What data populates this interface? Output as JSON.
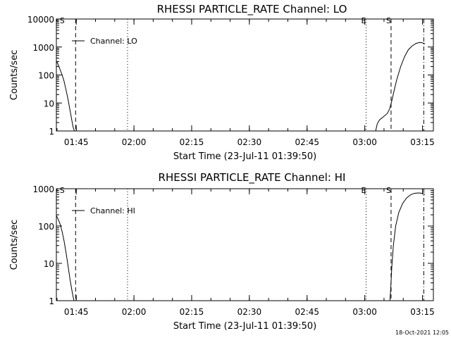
{
  "chart_data": [
    {
      "type": "line",
      "title": "RHESSI PARTICLE_RATE Channel: LO",
      "xlabel": "Start Time (23-Jul-11 01:39:50)",
      "ylabel": "Counts/sec",
      "yscale": "log",
      "ylim": [
        1,
        10000
      ],
      "ytick_labels": [
        "1",
        "10",
        "100",
        "1000",
        "10000"
      ],
      "xlim_minutes_from_start": [
        0,
        98
      ],
      "xtick_labels": [
        "01:45",
        "02:00",
        "02:15",
        "02:30",
        "02:45",
        "03:00",
        "03:15"
      ],
      "legend": "Channel: LO",
      "event_markers": [
        {
          "label": "S",
          "minute": 0.5,
          "style": "none"
        },
        {
          "label": "",
          "minute": 5.0,
          "style": "dashed"
        },
        {
          "label": "",
          "minute": 18.5,
          "style": "dotted"
        },
        {
          "label": "E",
          "minute": 80.5,
          "style": "dotted"
        },
        {
          "label": "S",
          "minute": 87.0,
          "style": "dashed"
        },
        {
          "label": "",
          "minute": 95.5,
          "style": "dashdot"
        }
      ],
      "series": [
        {
          "name": "Channel: LO",
          "segments": [
            [
              [
                0.0,
                320
              ],
              [
                0.5,
                230
              ],
              [
                1.0,
                150
              ],
              [
                1.5,
                100
              ],
              [
                2.0,
                60
              ],
              [
                2.5,
                30
              ],
              [
                3.0,
                14
              ],
              [
                3.5,
                6
              ],
              [
                4.0,
                2.5
              ],
              [
                4.4,
                1.3
              ],
              [
                4.7,
                1
              ]
            ],
            [
              [
                83.0,
                1
              ],
              [
                83.4,
                1.8
              ],
              [
                84.0,
                2.5
              ],
              [
                85.0,
                3.2
              ],
              [
                86.0,
                4.2
              ],
              [
                86.6,
                6
              ],
              [
                87.2,
                12
              ],
              [
                87.8,
                28
              ],
              [
                88.5,
                70
              ],
              [
                89.5,
                200
              ],
              [
                90.5,
                450
              ],
              [
                91.5,
                800
              ],
              [
                92.5,
                1100
              ],
              [
                93.5,
                1350
              ],
              [
                94.5,
                1450
              ],
              [
                95.2,
                1400
              ],
              [
                95.8,
                1300
              ]
            ]
          ]
        }
      ]
    },
    {
      "type": "line",
      "title": "RHESSI PARTICLE_RATE Channel: HI",
      "xlabel": "Start Time (23-Jul-11 01:39:50)",
      "ylabel": "Counts/sec",
      "yscale": "log",
      "ylim": [
        1,
        1000
      ],
      "ytick_labels": [
        "1",
        "10",
        "100",
        "1000"
      ],
      "xlim_minutes_from_start": [
        0,
        98
      ],
      "xtick_labels": [
        "01:45",
        "02:00",
        "02:15",
        "02:30",
        "02:45",
        "03:00",
        "03:15"
      ],
      "legend": "Channel: HI",
      "event_markers": [
        {
          "label": "S",
          "minute": 0.5,
          "style": "none"
        },
        {
          "label": "",
          "minute": 5.0,
          "style": "dashed"
        },
        {
          "label": "",
          "minute": 18.5,
          "style": "dotted"
        },
        {
          "label": "E",
          "minute": 80.5,
          "style": "dotted"
        },
        {
          "label": "S",
          "minute": 87.0,
          "style": "dashed"
        },
        {
          "label": "",
          "minute": 95.5,
          "style": "dashdot"
        }
      ],
      "series": [
        {
          "name": "Channel: HI",
          "segments": [
            [
              [
                0.0,
                190
              ],
              [
                0.5,
                150
              ],
              [
                1.0,
                110
              ],
              [
                1.5,
                70
              ],
              [
                2.0,
                40
              ],
              [
                2.5,
                20
              ],
              [
                3.0,
                9
              ],
              [
                3.5,
                4
              ],
              [
                4.0,
                2
              ],
              [
                4.4,
                1.2
              ],
              [
                4.6,
                1
              ]
            ],
            [
              [
                86.7,
                1
              ],
              [
                86.9,
                2
              ],
              [
                87.2,
                8
              ],
              [
                87.6,
                30
              ],
              [
                88.2,
                100
              ],
              [
                89.0,
                230
              ],
              [
                90.0,
                400
              ],
              [
                91.0,
                560
              ],
              [
                92.0,
                680
              ],
              [
                93.0,
                750
              ],
              [
                94.0,
                770
              ],
              [
                94.8,
                760
              ],
              [
                95.8,
                700
              ]
            ]
          ]
        }
      ]
    }
  ],
  "timestamp": "18-Oct-2021 12:05"
}
